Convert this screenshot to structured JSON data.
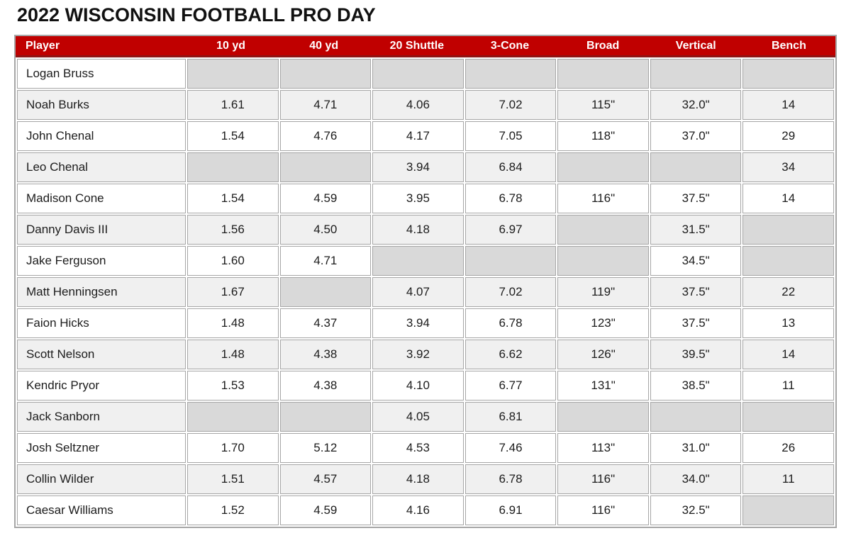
{
  "colors": {
    "header_bg": "#c00000",
    "header_text": "#ffffff",
    "header_underline": "#8e1414",
    "row_white": "#ffffff",
    "row_stripe": "#f0f0f0",
    "empty_cell": "#d9d9d9",
    "cell_border": "#a6a6a6",
    "body_text": "#1c1c1c",
    "title_text": "#111111"
  },
  "chart_data": {
    "type": "table",
    "title": "2022 WISCONSIN FOOTBALL PRO DAY",
    "columns": [
      "Player",
      "10 yd",
      "40 yd",
      "20 Shuttle",
      "3-Cone",
      "Broad",
      "Vertical",
      "Bench"
    ],
    "rows": [
      [
        "Logan Bruss",
        "",
        "",
        "",
        "",
        "",
        "",
        ""
      ],
      [
        "Noah Burks",
        "1.61",
        "4.71",
        "4.06",
        "7.02",
        "115\"",
        "32.0\"",
        "14"
      ],
      [
        "John Chenal",
        "1.54",
        "4.76",
        "4.17",
        "7.05",
        "118\"",
        "37.0\"",
        "29"
      ],
      [
        "Leo Chenal",
        "",
        "",
        "3.94",
        "6.84",
        "",
        "",
        "34"
      ],
      [
        "Madison Cone",
        "1.54",
        "4.59",
        "3.95",
        "6.78",
        "116\"",
        "37.5\"",
        "14"
      ],
      [
        "Danny Davis III",
        "1.56",
        "4.50",
        "4.18",
        "6.97",
        "",
        "31.5\"",
        ""
      ],
      [
        "Jake Ferguson",
        "1.60",
        "4.71",
        "",
        "",
        "",
        "34.5\"",
        ""
      ],
      [
        "Matt Henningsen",
        "1.67",
        "",
        "4.07",
        "7.02",
        "119\"",
        "37.5\"",
        "22"
      ],
      [
        "Faion Hicks",
        "1.48",
        "4.37",
        "3.94",
        "6.78",
        "123\"",
        "37.5\"",
        "13"
      ],
      [
        "Scott Nelson",
        "1.48",
        "4.38",
        "3.92",
        "6.62",
        "126\"",
        "39.5\"",
        "14"
      ],
      [
        "Kendric Pryor",
        "1.53",
        "4.38",
        "4.10",
        "6.77",
        "131\"",
        "38.5\"",
        "11"
      ],
      [
        "Jack Sanborn",
        "",
        "",
        "4.05",
        "6.81",
        "",
        "",
        ""
      ],
      [
        "Josh Seltzner",
        "1.70",
        "5.12",
        "4.53",
        "7.46",
        "113\"",
        "31.0\"",
        "26"
      ],
      [
        "Collin Wilder",
        "1.51",
        "4.57",
        "4.18",
        "6.78",
        "116\"",
        "34.0\"",
        "11"
      ],
      [
        "Caesar Williams",
        "1.52",
        "4.59",
        "4.16",
        "6.91",
        "116\"",
        "32.5\"",
        ""
      ]
    ]
  }
}
